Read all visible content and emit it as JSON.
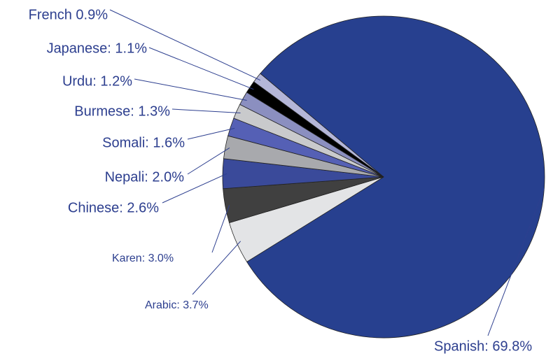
{
  "chart_data": {
    "type": "pie",
    "values": [
      69.8,
      3.7,
      3.0,
      2.6,
      2.0,
      1.6,
      1.3,
      1.2,
      1.1,
      0.9
    ],
    "value_labels": [
      "Spanish: 69.8%",
      "Arabic: 3.7%",
      "Karen: 3.0%",
      "Chinese: 2.6%",
      "Nepali: 2.0%",
      "Somali: 1.6%",
      "Burmese: 1.3%",
      "Urdu: 1.2%",
      "Japanese: 1.1%",
      "French 0.9%"
    ],
    "colors": [
      "#27408f",
      "#e3e4e6",
      "#404040",
      "#3a4a9a",
      "#a8a9ad",
      "#5560b5",
      "#c9cacc",
      "#8b8fc0",
      "#000000",
      "#b4b6d8"
    ]
  }
}
